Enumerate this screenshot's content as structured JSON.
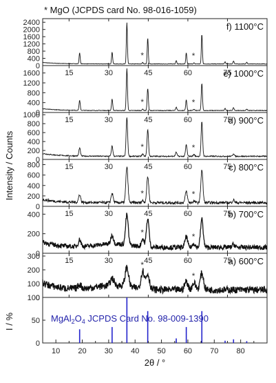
{
  "chart_data": {
    "type": "line",
    "title": "* MgO (JCPDS card No. 98-016-1059)",
    "xlabel": "2θ / °",
    "ylabel": "Intensity / Counts",
    "xlim": [
      5,
      90
    ],
    "x_ticks": [
      15,
      30,
      45,
      60,
      75
    ],
    "x_tick_labels": [
      "15",
      "30",
      "45",
      "60",
      "75"
    ],
    "grid": false,
    "mgo_marker": "*",
    "mgo_peaks_2theta": [
      42.9,
      62.3
    ],
    "panels": [
      {
        "label": "f) 1100°C",
        "ylim": [
          0,
          2600
        ],
        "y_ticks": [
          0,
          400,
          800,
          1200,
          1600,
          2000,
          2400
        ],
        "y_tick_labels": [
          "0",
          "400",
          "800",
          "1200",
          "1600",
          "2000",
          "2400"
        ],
        "background": 90,
        "peaks": [
          {
            "x": 19.0,
            "y": 620
          },
          {
            "x": 31.3,
            "y": 660
          },
          {
            "x": 36.9,
            "y": 2300
          },
          {
            "x": 42.9,
            "y": 90
          },
          {
            "x": 44.8,
            "y": 1430
          },
          {
            "x": 55.6,
            "y": 190
          },
          {
            "x": 59.4,
            "y": 620
          },
          {
            "x": 62.3,
            "y": 60
          },
          {
            "x": 65.3,
            "y": 1650
          },
          {
            "x": 74.1,
            "y": 120
          },
          {
            "x": 77.3,
            "y": 170
          },
          {
            "x": 82.3,
            "y": 90
          }
        ]
      },
      {
        "label": "e) 1000°C",
        "ylim": [
          0,
          1900
        ],
        "y_ticks": [
          0,
          400,
          800,
          1200,
          1600
        ],
        "y_tick_labels": [
          "0",
          "400",
          "800",
          "1200",
          "1600"
        ],
        "background": 80,
        "peaks": [
          {
            "x": 19.0,
            "y": 400
          },
          {
            "x": 31.3,
            "y": 460
          },
          {
            "x": 36.9,
            "y": 1700
          },
          {
            "x": 42.9,
            "y": 60
          },
          {
            "x": 44.8,
            "y": 900
          },
          {
            "x": 55.6,
            "y": 140
          },
          {
            "x": 59.4,
            "y": 430
          },
          {
            "x": 62.3,
            "y": 50
          },
          {
            "x": 65.3,
            "y": 1100
          },
          {
            "x": 74.1,
            "y": 80
          },
          {
            "x": 77.3,
            "y": 110
          },
          {
            "x": 82.3,
            "y": 60
          }
        ]
      },
      {
        "label": "d) 900°C",
        "ylim": [
          0,
          1050
        ],
        "y_ticks": [
          0,
          200,
          400,
          600,
          800,
          1000
        ],
        "y_tick_labels": [
          "0",
          "200",
          "400",
          "600",
          "800",
          "1000"
        ],
        "background": 70,
        "peaks": [
          {
            "x": 19.0,
            "y": 180
          },
          {
            "x": 31.3,
            "y": 230
          },
          {
            "x": 36.9,
            "y": 880
          },
          {
            "x": 42.9,
            "y": 50
          },
          {
            "x": 44.8,
            "y": 600
          },
          {
            "x": 55.6,
            "y": 90
          },
          {
            "x": 59.4,
            "y": 260
          },
          {
            "x": 62.3,
            "y": 40
          },
          {
            "x": 65.3,
            "y": 770
          },
          {
            "x": 77.3,
            "y": 60
          }
        ]
      },
      {
        "label": "c) 800°C",
        "ylim": [
          0,
          900
        ],
        "y_ticks": [
          0,
          200,
          400,
          600,
          800
        ],
        "y_tick_labels": [
          "0",
          "200",
          "400",
          "600",
          "800"
        ],
        "background": 70,
        "peaks": [
          {
            "x": 19.0,
            "y": 150
          },
          {
            "x": 31.3,
            "y": 180
          },
          {
            "x": 36.9,
            "y": 690
          },
          {
            "x": 42.9,
            "y": 40
          },
          {
            "x": 44.8,
            "y": 500
          },
          {
            "x": 59.4,
            "y": 220
          },
          {
            "x": 62.3,
            "y": 30
          },
          {
            "x": 65.3,
            "y": 630
          },
          {
            "x": 77.3,
            "y": 50
          }
        ]
      },
      {
        "label": "b) 700°C",
        "ylim": [
          0,
          480
        ],
        "y_ticks": [
          0,
          200,
          400
        ],
        "y_tick_labels": [
          "0",
          "200",
          "400"
        ],
        "background": 60,
        "peaks": [
          {
            "x": 19.0,
            "y": 70
          },
          {
            "x": 31.3,
            "y": 90
          },
          {
            "x": 36.9,
            "y": 310
          },
          {
            "x": 42.9,
            "y": 80
          },
          {
            "x": 44.8,
            "y": 290
          },
          {
            "x": 59.4,
            "y": 110
          },
          {
            "x": 62.3,
            "y": 40
          },
          {
            "x": 65.3,
            "y": 290
          },
          {
            "x": 77.3,
            "y": 30
          }
        ]
      },
      {
        "label": "a) 600°C",
        "ylim": [
          0,
          320
        ],
        "y_ticks": [
          0,
          100,
          200,
          300
        ],
        "y_tick_labels": [
          "0",
          "100",
          "200",
          "300"
        ],
        "background": 55,
        "peaks": [
          {
            "x": 19.0,
            "y": 30
          },
          {
            "x": 31.3,
            "y": 50
          },
          {
            "x": 36.9,
            "y": 140
          },
          {
            "x": 42.9,
            "y": 130
          },
          {
            "x": 44.8,
            "y": 110
          },
          {
            "x": 59.4,
            "y": 60
          },
          {
            "x": 62.3,
            "y": 50
          },
          {
            "x": 65.3,
            "y": 120
          }
        ]
      }
    ],
    "reference": {
      "label": "MgAl2O4 JCPDS Card No. 98-009-1390",
      "ylabel": "I / %",
      "ylim": [
        0,
        100
      ],
      "y_ticks": [
        0,
        50,
        100
      ],
      "y_tick_labels": [
        "0",
        "50",
        "100"
      ],
      "color": "#2222cc",
      "sticks": [
        {
          "x": 19.0,
          "y": 30
        },
        {
          "x": 31.3,
          "y": 35
        },
        {
          "x": 36.9,
          "y": 100
        },
        {
          "x": 44.8,
          "y": 70
        },
        {
          "x": 55.6,
          "y": 10
        },
        {
          "x": 59.4,
          "y": 35
        },
        {
          "x": 65.3,
          "y": 70
        },
        {
          "x": 74.1,
          "y": 5
        },
        {
          "x": 77.3,
          "y": 8
        },
        {
          "x": 82.3,
          "y": 4
        }
      ]
    }
  }
}
